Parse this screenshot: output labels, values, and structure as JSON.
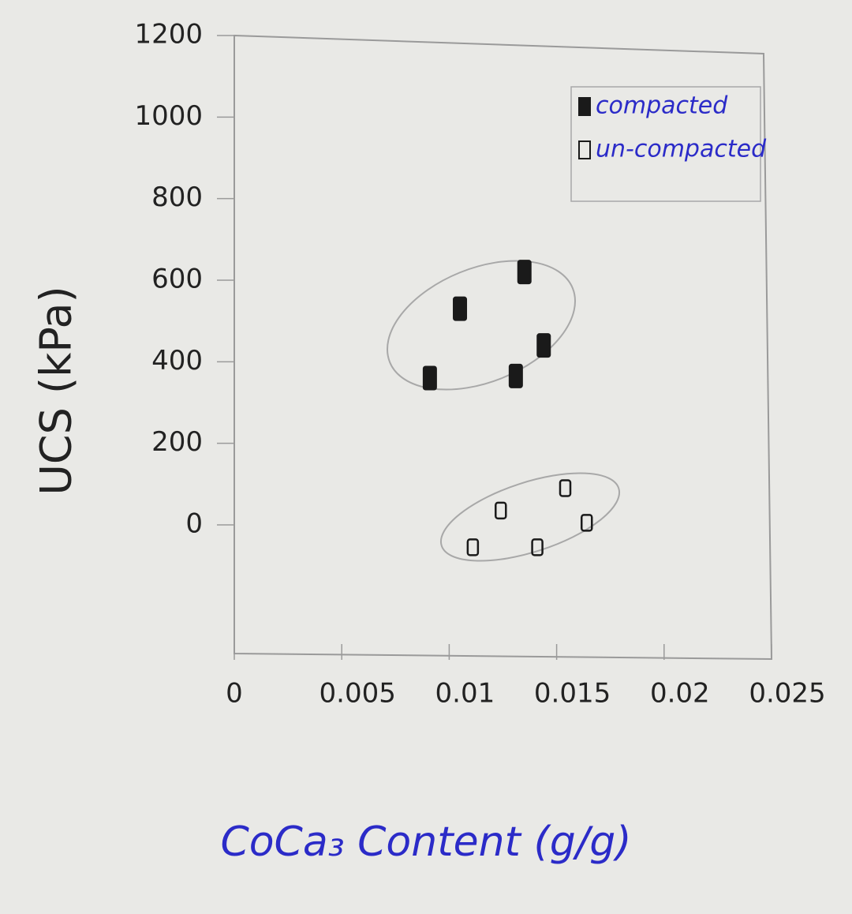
{
  "chart_data": {
    "type": "scatter",
    "x_label": "CoCa₃ Content (g/g)",
    "y_label": "UCS (kPa)",
    "xlim": [
      0,
      0.025
    ],
    "ylim": [
      -300,
      1200
    ],
    "xticks": [
      0,
      0.005,
      0.01,
      0.015,
      0.02,
      0.025
    ],
    "yticks": [
      0,
      200,
      400,
      600,
      800,
      1000,
      1200
    ],
    "legend": "upper right",
    "series": [
      {
        "name": "compacted",
        "color": "#1a1a1a",
        "fill": true,
        "x": [
          0.0091,
          0.0105,
          0.0135,
          0.0144,
          0.0131
        ],
        "values": [
          360,
          530,
          620,
          440,
          365
        ]
      },
      {
        "name": "un-compacted",
        "color": "#1a1a1a",
        "fill": false,
        "x": [
          0.0111,
          0.0124,
          0.0141,
          0.0154,
          0.0164
        ],
        "values": [
          -55,
          35,
          -55,
          90,
          5
        ]
      }
    ]
  }
}
